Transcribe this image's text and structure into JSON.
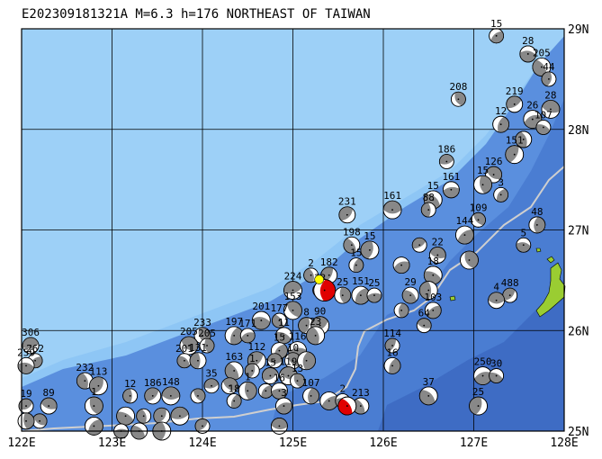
{
  "title": "E202309181321A M=6.3 h=176 NORTHEAST OF TAIWAN",
  "colors": {
    "ocean_light": "#8ec6f5",
    "ocean_deep": "#4a7fd6",
    "ocean_deeper": "#3f6fc7",
    "land": "#9acd32",
    "grid": "#000000",
    "trench_line": "#c8c8c8",
    "main_event": "#e00000",
    "main_event_dot": "#ffff00",
    "beachball_fill": "#888888"
  },
  "axes": {
    "lon_labels": [
      "122E",
      "123E",
      "124E",
      "125E",
      "126E",
      "127E",
      "128E"
    ],
    "lat_labels": [
      "29N",
      "28N",
      "27N",
      "26N",
      "25N"
    ],
    "lon_range": [
      122,
      128
    ],
    "lat_range": [
      25,
      29
    ]
  },
  "events": [
    {
      "lon": 127.25,
      "lat": 28.93,
      "label": "15"
    },
    {
      "lon": 127.6,
      "lat": 28.75,
      "label": "28"
    },
    {
      "lon": 127.75,
      "lat": 28.62,
      "label": "205"
    },
    {
      "lon": 127.83,
      "lat": 28.5,
      "label": "44"
    },
    {
      "lon": 127.45,
      "lat": 28.25,
      "label": "219"
    },
    {
      "lon": 127.85,
      "lat": 28.2,
      "label": "28"
    },
    {
      "lon": 126.83,
      "lat": 28.3,
      "label": "208"
    },
    {
      "lon": 127.3,
      "lat": 28.05,
      "label": "12"
    },
    {
      "lon": 127.65,
      "lat": 28.1,
      "label": "26"
    },
    {
      "lon": 127.77,
      "lat": 28.02,
      "label": "107"
    },
    {
      "lon": 127.55,
      "lat": 27.9,
      "label": ""
    },
    {
      "lon": 127.45,
      "lat": 27.75,
      "label": "151"
    },
    {
      "lon": 126.7,
      "lat": 27.68,
      "label": "186"
    },
    {
      "lon": 127.22,
      "lat": 27.55,
      "label": "126"
    },
    {
      "lon": 127.1,
      "lat": 27.45,
      "label": "15"
    },
    {
      "lon": 127.3,
      "lat": 27.35,
      "label": "3"
    },
    {
      "lon": 126.75,
      "lat": 27.4,
      "label": "161"
    },
    {
      "lon": 126.55,
      "lat": 27.3,
      "label": "15"
    },
    {
      "lon": 126.5,
      "lat": 27.2,
      "label": "88"
    },
    {
      "lon": 125.6,
      "lat": 27.15,
      "label": "231"
    },
    {
      "lon": 126.1,
      "lat": 27.2,
      "label": "161"
    },
    {
      "lon": 127.05,
      "lat": 27.1,
      "label": "109"
    },
    {
      "lon": 127.7,
      "lat": 27.05,
      "label": "48"
    },
    {
      "lon": 126.9,
      "lat": 26.95,
      "label": "144"
    },
    {
      "lon": 127.55,
      "lat": 26.85,
      "label": "5"
    },
    {
      "lon": 125.65,
      "lat": 26.85,
      "label": "198"
    },
    {
      "lon": 125.85,
      "lat": 26.8,
      "label": "15"
    },
    {
      "lon": 126.4,
      "lat": 26.85,
      "label": ""
    },
    {
      "lon": 126.6,
      "lat": 26.75,
      "label": "22"
    },
    {
      "lon": 126.95,
      "lat": 26.7,
      "label": ""
    },
    {
      "lon": 125.7,
      "lat": 26.65,
      "label": "15"
    },
    {
      "lon": 126.2,
      "lat": 26.65,
      "label": ""
    },
    {
      "lon": 126.55,
      "lat": 26.55,
      "label": "18"
    },
    {
      "lon": 125.2,
      "lat": 26.55,
      "label": "2"
    },
    {
      "lon": 125.4,
      "lat": 26.55,
      "label": "182"
    },
    {
      "lon": 125.0,
      "lat": 26.4,
      "label": "224"
    },
    {
      "lon": 125.3,
      "lat": 26.4,
      "label": "33"
    },
    {
      "lon": 125.55,
      "lat": 26.35,
      "label": "25"
    },
    {
      "lon": 125.75,
      "lat": 26.35,
      "label": "151"
    },
    {
      "lon": 125.9,
      "lat": 26.35,
      "label": "25"
    },
    {
      "lon": 126.3,
      "lat": 26.35,
      "label": "29"
    },
    {
      "lon": 126.5,
      "lat": 26.4,
      "label": ""
    },
    {
      "lon": 127.4,
      "lat": 26.35,
      "label": "488"
    },
    {
      "lon": 127.25,
      "lat": 26.3,
      "label": "4"
    },
    {
      "lon": 125.0,
      "lat": 26.2,
      "label": "153"
    },
    {
      "lon": 126.2,
      "lat": 26.2,
      "label": ""
    },
    {
      "lon": 126.55,
      "lat": 26.2,
      "label": "103"
    },
    {
      "lon": 124.65,
      "lat": 26.1,
      "label": "201"
    },
    {
      "lon": 124.85,
      "lat": 26.1,
      "label": "177"
    },
    {
      "lon": 125.15,
      "lat": 26.05,
      "label": "8"
    },
    {
      "lon": 125.3,
      "lat": 26.05,
      "label": "90"
    },
    {
      "lon": 126.45,
      "lat": 26.05,
      "label": "64"
    },
    {
      "lon": 124.0,
      "lat": 25.95,
      "label": "233"
    },
    {
      "lon": 124.35,
      "lat": 25.95,
      "label": "197"
    },
    {
      "lon": 124.5,
      "lat": 25.95,
      "label": "171"
    },
    {
      "lon": 124.9,
      "lat": 25.95,
      "label": "11"
    },
    {
      "lon": 125.25,
      "lat": 25.95,
      "label": "23"
    },
    {
      "lon": 126.1,
      "lat": 25.85,
      "label": "114"
    },
    {
      "lon": 122.1,
      "lat": 25.85,
      "label": "306"
    },
    {
      "lon": 123.85,
      "lat": 25.85,
      "label": "205"
    },
    {
      "lon": 124.05,
      "lat": 25.85,
      "label": "205"
    },
    {
      "lon": 124.85,
      "lat": 25.8,
      "label": "15"
    },
    {
      "lon": 125.05,
      "lat": 25.8,
      "label": "116"
    },
    {
      "lon": 123.8,
      "lat": 25.7,
      "label": "201"
    },
    {
      "lon": 123.95,
      "lat": 25.7,
      "label": "131"
    },
    {
      "lon": 124.6,
      "lat": 25.7,
      "label": "112"
    },
    {
      "lon": 124.8,
      "lat": 25.7,
      "label": ""
    },
    {
      "lon": 125.0,
      "lat": 25.7,
      "label": "10"
    },
    {
      "lon": 125.15,
      "lat": 25.7,
      "label": ""
    },
    {
      "lon": 122.15,
      "lat": 25.7,
      "label": "262"
    },
    {
      "lon": 122.05,
      "lat": 25.65,
      "label": "259"
    },
    {
      "lon": 124.35,
      "lat": 25.6,
      "label": "163"
    },
    {
      "lon": 124.55,
      "lat": 25.6,
      "label": "1"
    },
    {
      "lon": 124.75,
      "lat": 25.55,
      "label": "15"
    },
    {
      "lon": 124.95,
      "lat": 25.55,
      "label": "119"
    },
    {
      "lon": 125.05,
      "lat": 25.5,
      "label": "13"
    },
    {
      "lon": 126.1,
      "lat": 25.65,
      "label": "16"
    },
    {
      "lon": 127.1,
      "lat": 25.55,
      "label": "250"
    },
    {
      "lon": 127.25,
      "lat": 25.55,
      "label": "30"
    },
    {
      "lon": 122.7,
      "lat": 25.5,
      "label": "232"
    },
    {
      "lon": 122.85,
      "lat": 25.45,
      "label": "113"
    },
    {
      "lon": 124.1,
      "lat": 25.45,
      "label": "35"
    },
    {
      "lon": 124.3,
      "lat": 25.45,
      "label": ""
    },
    {
      "lon": 124.5,
      "lat": 25.4,
      "label": "1"
    },
    {
      "lon": 124.7,
      "lat": 25.4,
      "label": ""
    },
    {
      "lon": 124.85,
      "lat": 25.4,
      "label": "16"
    },
    {
      "lon": 126.5,
      "lat": 25.35,
      "label": "37"
    },
    {
      "lon": 123.2,
      "lat": 25.35,
      "label": "12"
    },
    {
      "lon": 123.45,
      "lat": 25.35,
      "label": "186"
    },
    {
      "lon": 123.65,
      "lat": 25.35,
      "label": "148"
    },
    {
      "lon": 123.95,
      "lat": 25.35,
      "label": ""
    },
    {
      "lon": 125.2,
      "lat": 25.35,
      "label": "107"
    },
    {
      "lon": 125.4,
      "lat": 25.3,
      "label": ""
    },
    {
      "lon": 125.55,
      "lat": 25.3,
      "label": "2"
    },
    {
      "lon": 125.75,
      "lat": 25.25,
      "label": "213"
    },
    {
      "lon": 127.05,
      "lat": 25.25,
      "label": "25"
    },
    {
      "lon": 122.05,
      "lat": 25.25,
      "label": "19"
    },
    {
      "lon": 122.3,
      "lat": 25.25,
      "label": "89"
    },
    {
      "lon": 122.8,
      "lat": 25.25,
      "label": "1"
    },
    {
      "lon": 124.35,
      "lat": 25.3,
      "label": "18"
    },
    {
      "lon": 124.9,
      "lat": 25.25,
      "label": "3"
    },
    {
      "lon": 123.15,
      "lat": 25.15,
      "label": ""
    },
    {
      "lon": 123.35,
      "lat": 25.15,
      "label": ""
    },
    {
      "lon": 123.55,
      "lat": 25.15,
      "label": ""
    },
    {
      "lon": 123.75,
      "lat": 25.15,
      "label": ""
    },
    {
      "lon": 122.2,
      "lat": 25.1,
      "label": ""
    },
    {
      "lon": 122.05,
      "lat": 25.1,
      "label": ""
    },
    {
      "lon": 122.8,
      "lat": 25.05,
      "label": ""
    },
    {
      "lon": 123.1,
      "lat": 25.0,
      "label": ""
    },
    {
      "lon": 123.3,
      "lat": 25.0,
      "label": ""
    },
    {
      "lon": 123.55,
      "lat": 25.0,
      "label": ""
    },
    {
      "lon": 124.0,
      "lat": 25.05,
      "label": ""
    },
    {
      "lon": 124.85,
      "lat": 25.05,
      "label": ""
    }
  ],
  "main_event": {
    "lon": 125.35,
    "lat": 26.4,
    "label": ""
  },
  "secondary_event": {
    "lon": 125.6,
    "lat": 25.25,
    "label": ""
  }
}
